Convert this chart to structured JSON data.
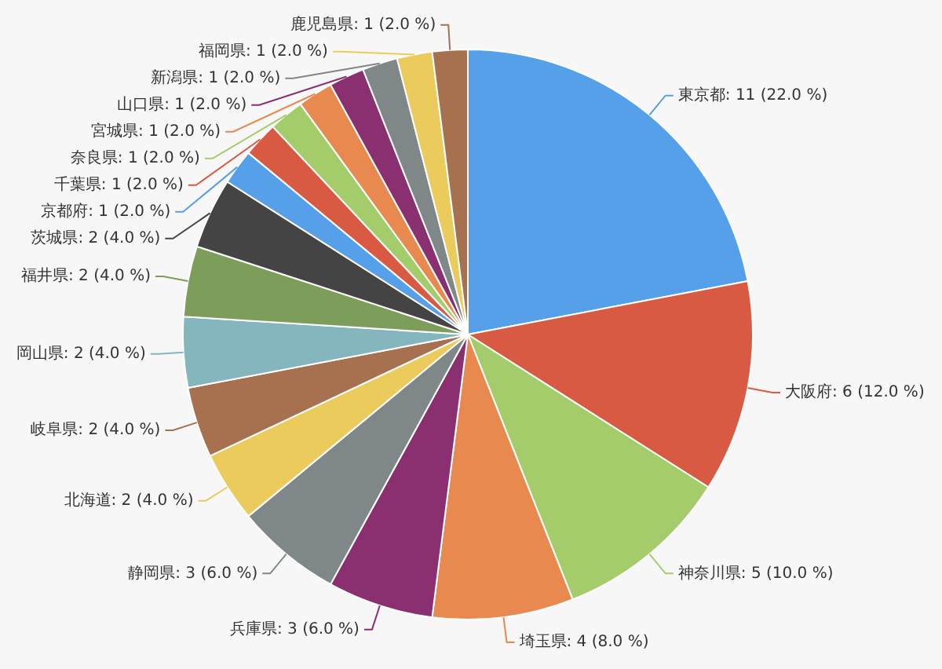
{
  "chart_data": {
    "type": "pie",
    "categories": [
      "東京都",
      "大阪府",
      "神奈川県",
      "埼玉県",
      "兵庫県",
      "静岡県",
      "北海道",
      "岐阜県",
      "岡山県",
      "福井県",
      "茨城県",
      "京都府",
      "千葉県",
      "奈良県",
      "宮城県",
      "山口県",
      "新潟県",
      "福岡県",
      "鹿児島県"
    ],
    "values": [
      11,
      6,
      5,
      4,
      3,
      3,
      2,
      2,
      2,
      2,
      2,
      1,
      1,
      1,
      1,
      1,
      1,
      1,
      1
    ],
    "value_labels": [
      "11 (22.0 %)",
      "6 (12.0 %)",
      "5 (10.0 %)",
      "4 (8.0 %)",
      "3 (6.0 %)",
      "3 (6.0 %)",
      "2 (4.0 %)",
      "2 (4.0 %)",
      "2 (4.0 %)",
      "2 (4.0 %)",
      "2 (4.0 %)",
      "1 (2.0 %)",
      "1 (2.0 %)",
      "1 (2.0 %)",
      "1 (2.0 %)",
      "1 (2.0 %)",
      "1 (2.0 %)",
      "1 (2.0 %)",
      "1 (2.0 %)"
    ],
    "colors": [
      "#55a0e8",
      "#d95a43",
      "#a5cc6a",
      "#e8894f",
      "#8a2f6f",
      "#7f8788",
      "#ebcb5c",
      "#a7704e",
      "#86b6bd",
      "#7d9d5a",
      "#444444",
      "#55a0e8",
      "#d95a43",
      "#a5cc6a",
      "#e8894f",
      "#8a2f6f",
      "#7f8788",
      "#ebcb5c",
      "#a7704e"
    ],
    "legend": false
  }
}
